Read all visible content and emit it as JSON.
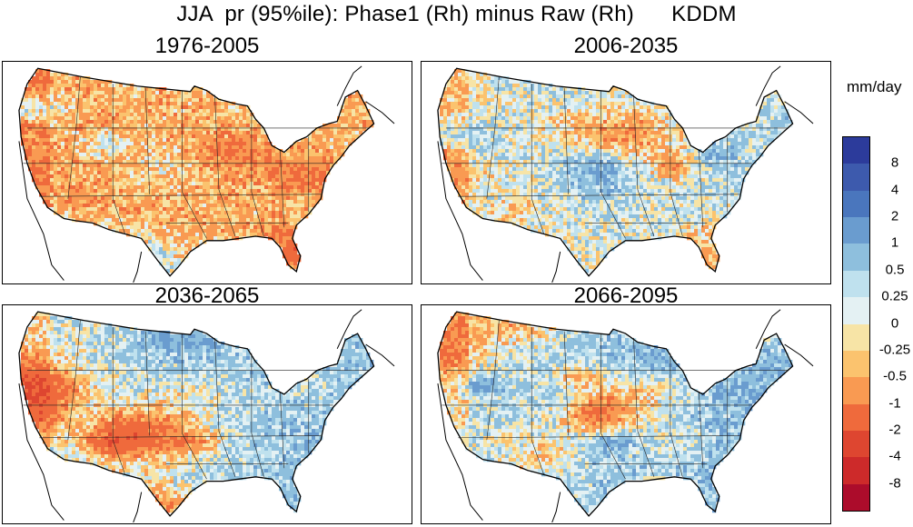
{
  "figure": {
    "title": "JJA  pr (95%ile): Phase1 (Rh) minus Raw (Rh)      KDDM",
    "unit": "mm/day"
  },
  "panels": [
    {
      "title": "1976-2005",
      "bias": -0.55,
      "east_trend": 0.15,
      "seed": 11
    },
    {
      "title": "2006-2035",
      "bias": 0.1,
      "east_trend": 0.55,
      "seed": 23
    },
    {
      "title": "2036-2065",
      "bias": 0.35,
      "east_trend": 0.8,
      "seed": 37
    },
    {
      "title": "2066-2095",
      "bias": 0.5,
      "east_trend": 0.75,
      "seed": 53
    }
  ],
  "colorbar": {
    "colors": [
      "#2c3b9b",
      "#3d5aad",
      "#4a76bd",
      "#6a9ccf",
      "#8ebfdd",
      "#bfe1ee",
      "#e4f1f3",
      "#f7e4a6",
      "#fbc36e",
      "#f99a52",
      "#ef6a3c",
      "#de4630",
      "#cd2a2a",
      "#ac0c2b"
    ],
    "tick_labels": [
      "8",
      "4",
      "2",
      "1",
      "0.5",
      "0.25",
      "0",
      "-0.25",
      "-0.5",
      "-1",
      "-2",
      "-4",
      "-8"
    ]
  }
}
